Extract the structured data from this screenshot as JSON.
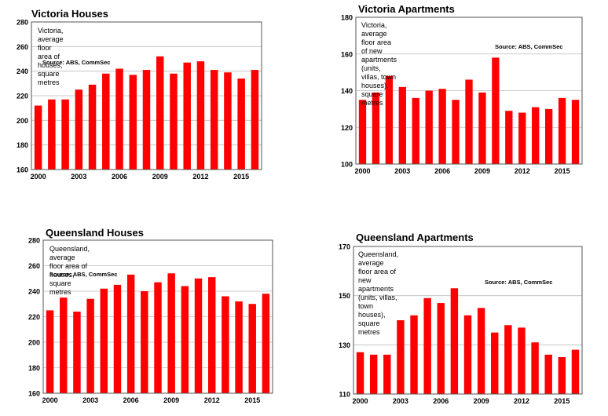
{
  "colors": {
    "bar": "#ff0000",
    "grid": "#bdbdbd",
    "frame": "#555555"
  },
  "charts": [
    {
      "title": "Victoria Houses",
      "description": "Victoria, average floor area of houses, square metres",
      "source": "Source: ABS, CommSec",
      "chart_data": {
        "type": "bar",
        "title": "Victoria Houses",
        "categories": [
          "2000",
          "2001",
          "2002",
          "2003",
          "2004",
          "2005",
          "2006",
          "2007",
          "2008",
          "2009",
          "2010",
          "2011",
          "2012",
          "2013",
          "2014",
          "2015",
          "2016"
        ],
        "values": [
          212,
          217,
          217,
          225,
          229,
          238,
          242,
          237,
          241,
          252,
          238,
          247,
          248,
          241,
          239,
          234,
          241
        ],
        "ylim": [
          160,
          280
        ],
        "yticks": [
          "160",
          "180",
          "200",
          "220",
          "240",
          "260",
          "280"
        ],
        "xtick_labels": [
          "2000",
          "2003",
          "2006",
          "2009",
          "2012",
          "2015"
        ],
        "grid": true
      }
    },
    {
      "title": "Victoria Apartments",
      "description": "Victoria, average floor area of new apartments\n(units, villas, town houses), square metres",
      "source": "Source: ABS, CommSec",
      "chart_data": {
        "type": "bar",
        "title": "Victoria Apartments",
        "categories": [
          "2000",
          "2001",
          "2002",
          "2003",
          "2004",
          "2005",
          "2006",
          "2007",
          "2008",
          "2009",
          "2010",
          "2011",
          "2012",
          "2013",
          "2014",
          "2015",
          "2016"
        ],
        "values": [
          135,
          139,
          148,
          142,
          136,
          140,
          141,
          135,
          146,
          139,
          158,
          129,
          128,
          131,
          130,
          136,
          135
        ],
        "ylim": [
          100,
          180
        ],
        "yticks": [
          "100",
          "120",
          "140",
          "160",
          "180"
        ],
        "xtick_labels": [
          "2000",
          "2003",
          "2006",
          "2009",
          "2012",
          "2015"
        ],
        "grid": true
      }
    },
    {
      "title": "Queensland Houses",
      "description": "Queensland, average floor area of houses, square metres",
      "source": "Source: ABS, CommSec",
      "chart_data": {
        "type": "bar",
        "title": "Queensland Houses",
        "categories": [
          "2000",
          "2001",
          "2002",
          "2003",
          "2004",
          "2005",
          "2006",
          "2007",
          "2008",
          "2009",
          "2010",
          "2011",
          "2012",
          "2013",
          "2014",
          "2015",
          "2016"
        ],
        "values": [
          225,
          235,
          224,
          234,
          242,
          245,
          253,
          240,
          247,
          254,
          244,
          250,
          251,
          236,
          232,
          230,
          238
        ],
        "ylim": [
          160,
          280
        ],
        "yticks": [
          "160",
          "180",
          "200",
          "220",
          "240",
          "260",
          "280"
        ],
        "xtick_labels": [
          "2000",
          "2003",
          "2006",
          "2009",
          "2012",
          "2015"
        ],
        "grid": true
      }
    },
    {
      "title": "Queensland Apartments",
      "description": "Queensland, average floor area of new apartments\n(units, villas, town houses), square metres",
      "source": "Source: ABS, CommSec",
      "chart_data": {
        "type": "bar",
        "title": "Queensland Apartments",
        "categories": [
          "2000",
          "2001",
          "2002",
          "2003",
          "2004",
          "2005",
          "2006",
          "2007",
          "2008",
          "2009",
          "2010",
          "2011",
          "2012",
          "2013",
          "2014",
          "2015",
          "2016"
        ],
        "values": [
          127,
          126,
          126,
          140,
          142,
          149,
          147,
          153,
          142,
          145,
          135,
          138,
          137,
          131,
          126,
          125,
          128
        ],
        "ylim": [
          110,
          170
        ],
        "yticks": [
          "110",
          "130",
          "150",
          "170"
        ],
        "xtick_labels": [
          "2000",
          "2003",
          "2006",
          "2009",
          "2012",
          "2015"
        ],
        "grid": true
      }
    }
  ]
}
